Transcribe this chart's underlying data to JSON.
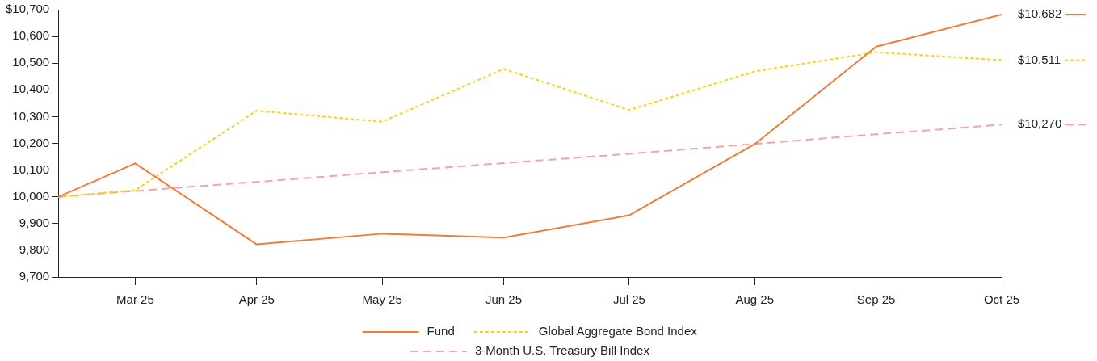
{
  "chart_data": {
    "type": "line",
    "x": [
      "2025-03-12",
      "2025-03-31",
      "2025-04-30",
      "2025-05-31",
      "2025-06-30",
      "2025-07-31",
      "2025-08-31",
      "2025-09-30",
      "2025-10-31"
    ],
    "xlim": [
      "2025-03-12",
      "2025-10-31"
    ],
    "xticks": [
      {
        "value": "2025-03-31",
        "label": "Mar 25"
      },
      {
        "value": "2025-04-30",
        "label": "Apr 25"
      },
      {
        "value": "2025-05-31",
        "label": "May 25"
      },
      {
        "value": "2025-06-30",
        "label": "Jun 25"
      },
      {
        "value": "2025-07-31",
        "label": "Jul 25"
      },
      {
        "value": "2025-08-31",
        "label": "Aug 25"
      },
      {
        "value": "2025-09-30",
        "label": "Sep 25"
      },
      {
        "value": "2025-10-31",
        "label": "Oct 25"
      }
    ],
    "ylim": [
      9700,
      10700
    ],
    "yticks": [
      {
        "value": 9700,
        "label": "9,700"
      },
      {
        "value": 9800,
        "label": "9,800"
      },
      {
        "value": 9900,
        "label": "9,900"
      },
      {
        "value": 10000,
        "label": "10,000"
      },
      {
        "value": 10100,
        "label": "10,100"
      },
      {
        "value": 10200,
        "label": "10,200"
      },
      {
        "value": 10300,
        "label": "10,300"
      },
      {
        "value": 10400,
        "label": "10,400"
      },
      {
        "value": 10500,
        "label": "10,500"
      },
      {
        "value": 10600,
        "label": "10,600"
      },
      {
        "value": 10700,
        "label": "$10,700"
      }
    ],
    "grid": false,
    "legend": "bottom",
    "marker": "none",
    "series": [
      {
        "name": "Fund",
        "color": "#f07c3a",
        "line_style": "solid",
        "values": [
          10000,
          10125,
          9822,
          9862,
          9847,
          9931,
          10197,
          10562,
          10682
        ],
        "value_labels": [
          null,
          null,
          null,
          null,
          null,
          null,
          null,
          null,
          "$10,682"
        ]
      },
      {
        "name": "Global Aggregate Bond Index",
        "color": "#fcd116",
        "line_style": "dotted",
        "values": [
          10000,
          10025,
          10322,
          10281,
          10478,
          10325,
          10469,
          10541,
          10511
        ],
        "value_labels": [
          null,
          null,
          null,
          null,
          null,
          null,
          null,
          null,
          "$10,511"
        ]
      },
      {
        "name": "3-Month U.S. Treasury Bill Index",
        "color": "#f4a3a8",
        "line_style": "dashed",
        "values": [
          10000,
          10022,
          10056,
          10092,
          10126,
          10161,
          10198,
          10234,
          10270
        ],
        "value_labels": [
          null,
          null,
          null,
          null,
          null,
          null,
          null,
          null,
          "$10,270"
        ]
      }
    ]
  }
}
